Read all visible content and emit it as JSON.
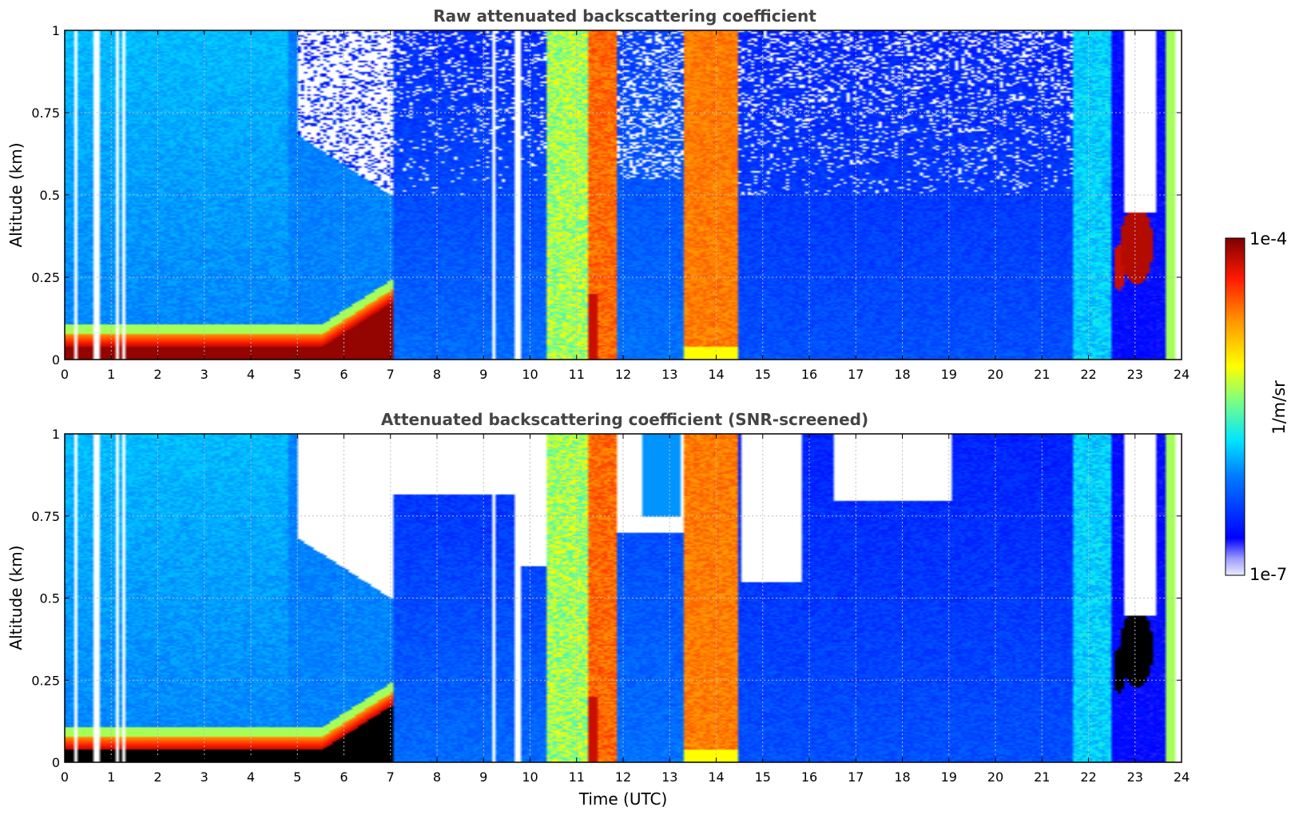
{
  "chart_data": [
    {
      "type": "heatmap",
      "title": "Raw attenuated backscattering coefficient",
      "ylabel": "Altitude (km)",
      "xlabel": "",
      "xlim": [
        0,
        24
      ],
      "ylim": [
        0,
        1
      ],
      "xticks": [
        "0",
        "1",
        "2",
        "3",
        "4",
        "5",
        "6",
        "7",
        "8",
        "9",
        "10",
        "11",
        "12",
        "13",
        "14",
        "15",
        "16",
        "17",
        "18",
        "19",
        "20",
        "21",
        "22",
        "23",
        "24"
      ],
      "yticks": [
        "0",
        "0.25",
        "0.5",
        "0.75",
        "1"
      ],
      "grid": true,
      "colormap": "jet",
      "background_level": 0.28,
      "description_bands": [
        {
          "x0": 0.0,
          "x1": 6.1,
          "z_surface": 0.98,
          "layer_top_km": 0.1
        },
        {
          "x0": 7.0,
          "x1": 10.3,
          "level": 0.2
        },
        {
          "x0": 10.35,
          "x1": 11.2,
          "level": 0.62
        },
        {
          "x0": 11.2,
          "x1": 11.85,
          "level": 0.82
        },
        {
          "x0": 13.3,
          "x1": 14.45,
          "level": 0.8
        },
        {
          "x0": 21.65,
          "x1": 22.45,
          "level": 0.45
        },
        {
          "x0": 23.6,
          "x1": 23.85,
          "level": 0.55
        }
      ],
      "features": [
        {
          "x": 23.0,
          "y": 0.34,
          "level": 0.95
        },
        {
          "x": 22.6,
          "y": 0.28,
          "level": 0.92
        }
      ],
      "white_gaps_hours": [
        0.18,
        0.65,
        0.7,
        1.1,
        1.25,
        9.2,
        9.7,
        9.75
      ]
    },
    {
      "type": "heatmap",
      "title": "Attenuated backscattering coefficient (SNR-screened)",
      "ylabel": "Altitude (km)",
      "xlabel": "Time (UTC)",
      "xlim": [
        0,
        24
      ],
      "ylim": [
        0,
        1
      ],
      "xticks": [
        "0",
        "1",
        "2",
        "3",
        "4",
        "5",
        "6",
        "7",
        "8",
        "9",
        "10",
        "11",
        "12",
        "13",
        "14",
        "15",
        "16",
        "17",
        "18",
        "19",
        "20",
        "21",
        "22",
        "23",
        "24"
      ],
      "yticks": [
        "0",
        "0.25",
        "0.5",
        "0.75",
        "1"
      ],
      "grid": true,
      "colormap": "jet",
      "saturated_color": "#000000",
      "background_level": 0.24,
      "white_gaps_hours": [
        0.18,
        0.65,
        0.7,
        1.1,
        1.25,
        9.2,
        9.7,
        9.75
      ]
    }
  ],
  "colorbar": {
    "label": "1/m/sr",
    "max_label": "1e-4",
    "min_label": "1e-7",
    "scale": "log"
  },
  "colors": {
    "title": "#444444",
    "high": "#7f0000",
    "low": "#00007f"
  }
}
